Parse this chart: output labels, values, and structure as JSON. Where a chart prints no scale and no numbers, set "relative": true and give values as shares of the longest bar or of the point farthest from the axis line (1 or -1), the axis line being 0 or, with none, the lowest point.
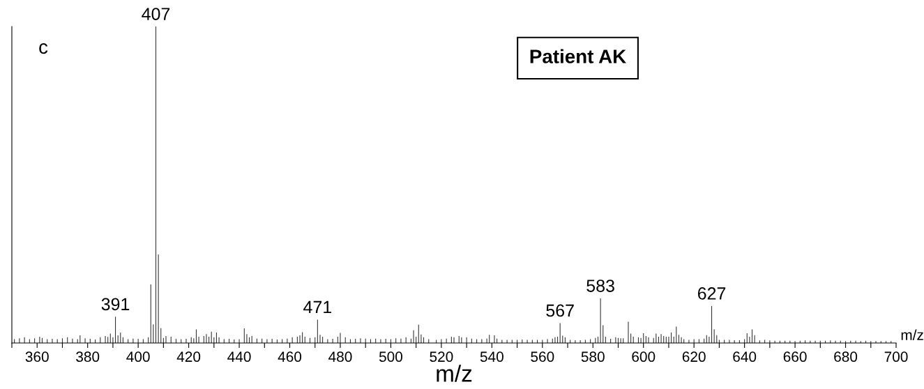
{
  "chart_data": {
    "type": "bar",
    "relative": true,
    "xlabel": "m/z",
    "color": "#333333",
    "x": [
      351,
      353,
      355,
      357,
      359,
      361,
      362,
      364,
      366,
      368,
      370,
      372,
      374,
      376,
      377,
      379,
      381,
      383,
      385,
      387,
      388,
      389,
      390,
      391,
      392,
      393,
      394,
      396,
      398,
      400,
      402,
      404,
      405,
      406,
      407,
      408,
      409,
      410,
      411,
      413,
      415,
      417,
      419,
      421,
      422,
      423,
      424,
      426,
      427,
      428,
      429,
      430,
      431,
      432,
      434,
      436,
      438,
      440,
      442,
      443,
      444,
      445,
      447,
      449,
      451,
      453,
      455,
      457,
      459,
      461,
      463,
      464,
      465,
      466,
      468,
      470,
      471,
      472,
      473,
      475,
      477,
      479,
      480,
      482,
      484,
      486,
      488,
      490,
      492,
      494,
      496,
      498,
      500,
      502,
      504,
      506,
      508,
      509,
      510,
      511,
      512,
      513,
      515,
      518,
      520,
      522,
      524,
      525,
      527,
      528,
      530,
      532,
      534,
      536,
      538,
      539,
      541,
      542,
      544,
      546,
      548,
      550,
      552,
      554,
      556,
      558,
      560,
      562,
      564,
      565,
      566,
      567,
      568,
      569,
      571,
      573,
      575,
      577,
      579,
      581,
      582,
      583,
      584,
      585,
      587,
      589,
      590,
      591,
      592,
      594,
      595,
      596,
      598,
      599,
      600,
      601,
      602,
      604,
      605,
      606,
      607,
      608,
      609,
      610,
      611,
      612,
      613,
      614,
      615,
      616,
      618,
      620,
      622,
      624,
      625,
      626,
      627,
      628,
      629,
      630,
      632,
      634,
      636,
      638,
      640,
      641,
      642,
      643,
      644,
      646,
      648,
      650,
      652,
      654,
      656,
      658,
      660,
      662,
      664,
      666,
      668,
      670,
      672,
      674,
      676,
      678,
      680,
      682,
      684,
      686,
      688,
      690,
      692,
      694,
      696,
      698
    ],
    "values": [
      0.012,
      0.015,
      0.018,
      0.012,
      0.015,
      0.02,
      0.016,
      0.012,
      0.013,
      0.012,
      0.015,
      0.018,
      0.014,
      0.012,
      0.024,
      0.015,
      0.013,
      0.011,
      0.018,
      0.022,
      0.019,
      0.03,
      0.018,
      0.083,
      0.024,
      0.033,
      0.018,
      0.012,
      0.014,
      0.013,
      0.012,
      0.018,
      0.185,
      0.059,
      1,
      0.28,
      0.047,
      0.016,
      0.022,
      0.02,
      0.013,
      0.012,
      0.013,
      0.018,
      0.015,
      0.043,
      0.02,
      0.022,
      0.028,
      0.02,
      0.036,
      0.018,
      0.033,
      0.018,
      0.012,
      0.013,
      0.011,
      0.012,
      0.046,
      0.028,
      0.018,
      0.022,
      0.014,
      0.014,
      0.012,
      0.013,
      0.011,
      0.012,
      0.014,
      0.018,
      0.02,
      0.024,
      0.034,
      0.02,
      0.016,
      0.018,
      0.074,
      0.026,
      0.02,
      0.012,
      0.013,
      0.02,
      0.032,
      0.018,
      0.012,
      0.013,
      0.015,
      0.014,
      0.012,
      0.014,
      0.012,
      0.013,
      0.012,
      0.015,
      0.014,
      0.018,
      0.014,
      0.04,
      0.02,
      0.058,
      0.027,
      0.018,
      0.012,
      0.01,
      0.012,
      0.014,
      0.02,
      0.018,
      0.022,
      0.018,
      0.018,
      0.014,
      0.012,
      0.012,
      0.014,
      0.026,
      0.024,
      0.014,
      0.01,
      0.01,
      0.01,
      0.01,
      0.011,
      0.01,
      0.01,
      0.01,
      0.01,
      0.012,
      0.014,
      0.018,
      0.02,
      0.063,
      0.023,
      0.018,
      0.01,
      0.009,
      0.009,
      0.01,
      0.012,
      0.016,
      0.02,
      0.141,
      0.056,
      0.02,
      0.013,
      0.018,
      0.016,
      0.015,
      0.015,
      0.067,
      0.03,
      0.02,
      0.018,
      0.016,
      0.031,
      0.022,
      0.018,
      0.016,
      0.03,
      0.02,
      0.028,
      0.022,
      0.02,
      0.02,
      0.033,
      0.02,
      0.052,
      0.026,
      0.018,
      0.012,
      0.01,
      0.012,
      0.012,
      0.014,
      0.025,
      0.02,
      0.117,
      0.043,
      0.025,
      0.01,
      0.01,
      0.01,
      0.009,
      0.009,
      0.012,
      0.031,
      0.02,
      0.043,
      0.025,
      0.008,
      0.01,
      0.008,
      0.007,
      0.007,
      0.007,
      0.007,
      0.006,
      0.007,
      0.008,
      0.007,
      0.007,
      0.007,
      0.007,
      0.008,
      0.007,
      0.007,
      0.006,
      0.007,
      0.007,
      0.006,
      0.007,
      0.006,
      0.006,
      0.006,
      0.006,
      0.006
    ],
    "xlim": [
      350,
      700
    ],
    "xticks": [
      {
        "value": 350,
        "label": null
      },
      360,
      {
        "value": 370,
        "label": null
      },
      380,
      {
        "value": 390,
        "label": null
      },
      400,
      {
        "value": 410,
        "label": null
      },
      420,
      {
        "value": 430,
        "label": null
      },
      440,
      {
        "value": 450,
        "label": null
      },
      460,
      {
        "value": 470,
        "label": null
      },
      480,
      {
        "value": 490,
        "label": null
      },
      500,
      {
        "value": 510,
        "label": null
      },
      520,
      {
        "value": 530,
        "label": null
      },
      540,
      {
        "value": 550,
        "label": null
      },
      560,
      {
        "value": 570,
        "label": null
      },
      580,
      {
        "value": 590,
        "label": null
      },
      600,
      {
        "value": 610,
        "label": null
      },
      620,
      {
        "value": 630,
        "label": null
      },
      640,
      {
        "value": 650,
        "label": null
      },
      660,
      {
        "value": 670,
        "label": null
      },
      680,
      {
        "value": 690,
        "label": null
      },
      700
    ],
    "annotations": [
      "c",
      "Patient AK",
      "m/z",
      {
        "text": "391",
        "x": 391,
        "y": 0.083
      },
      {
        "text": "407",
        "x": 407,
        "y": 1
      },
      {
        "text": "471",
        "x": 471,
        "y": 0.074
      },
      {
        "text": "567",
        "x": 567,
        "y": 0.063
      },
      {
        "text": "583",
        "x": 583,
        "y": 0.141
      },
      {
        "text": "627",
        "x": 627,
        "y": 0.117
      }
    ],
    "grid": false,
    "legend": false
  }
}
